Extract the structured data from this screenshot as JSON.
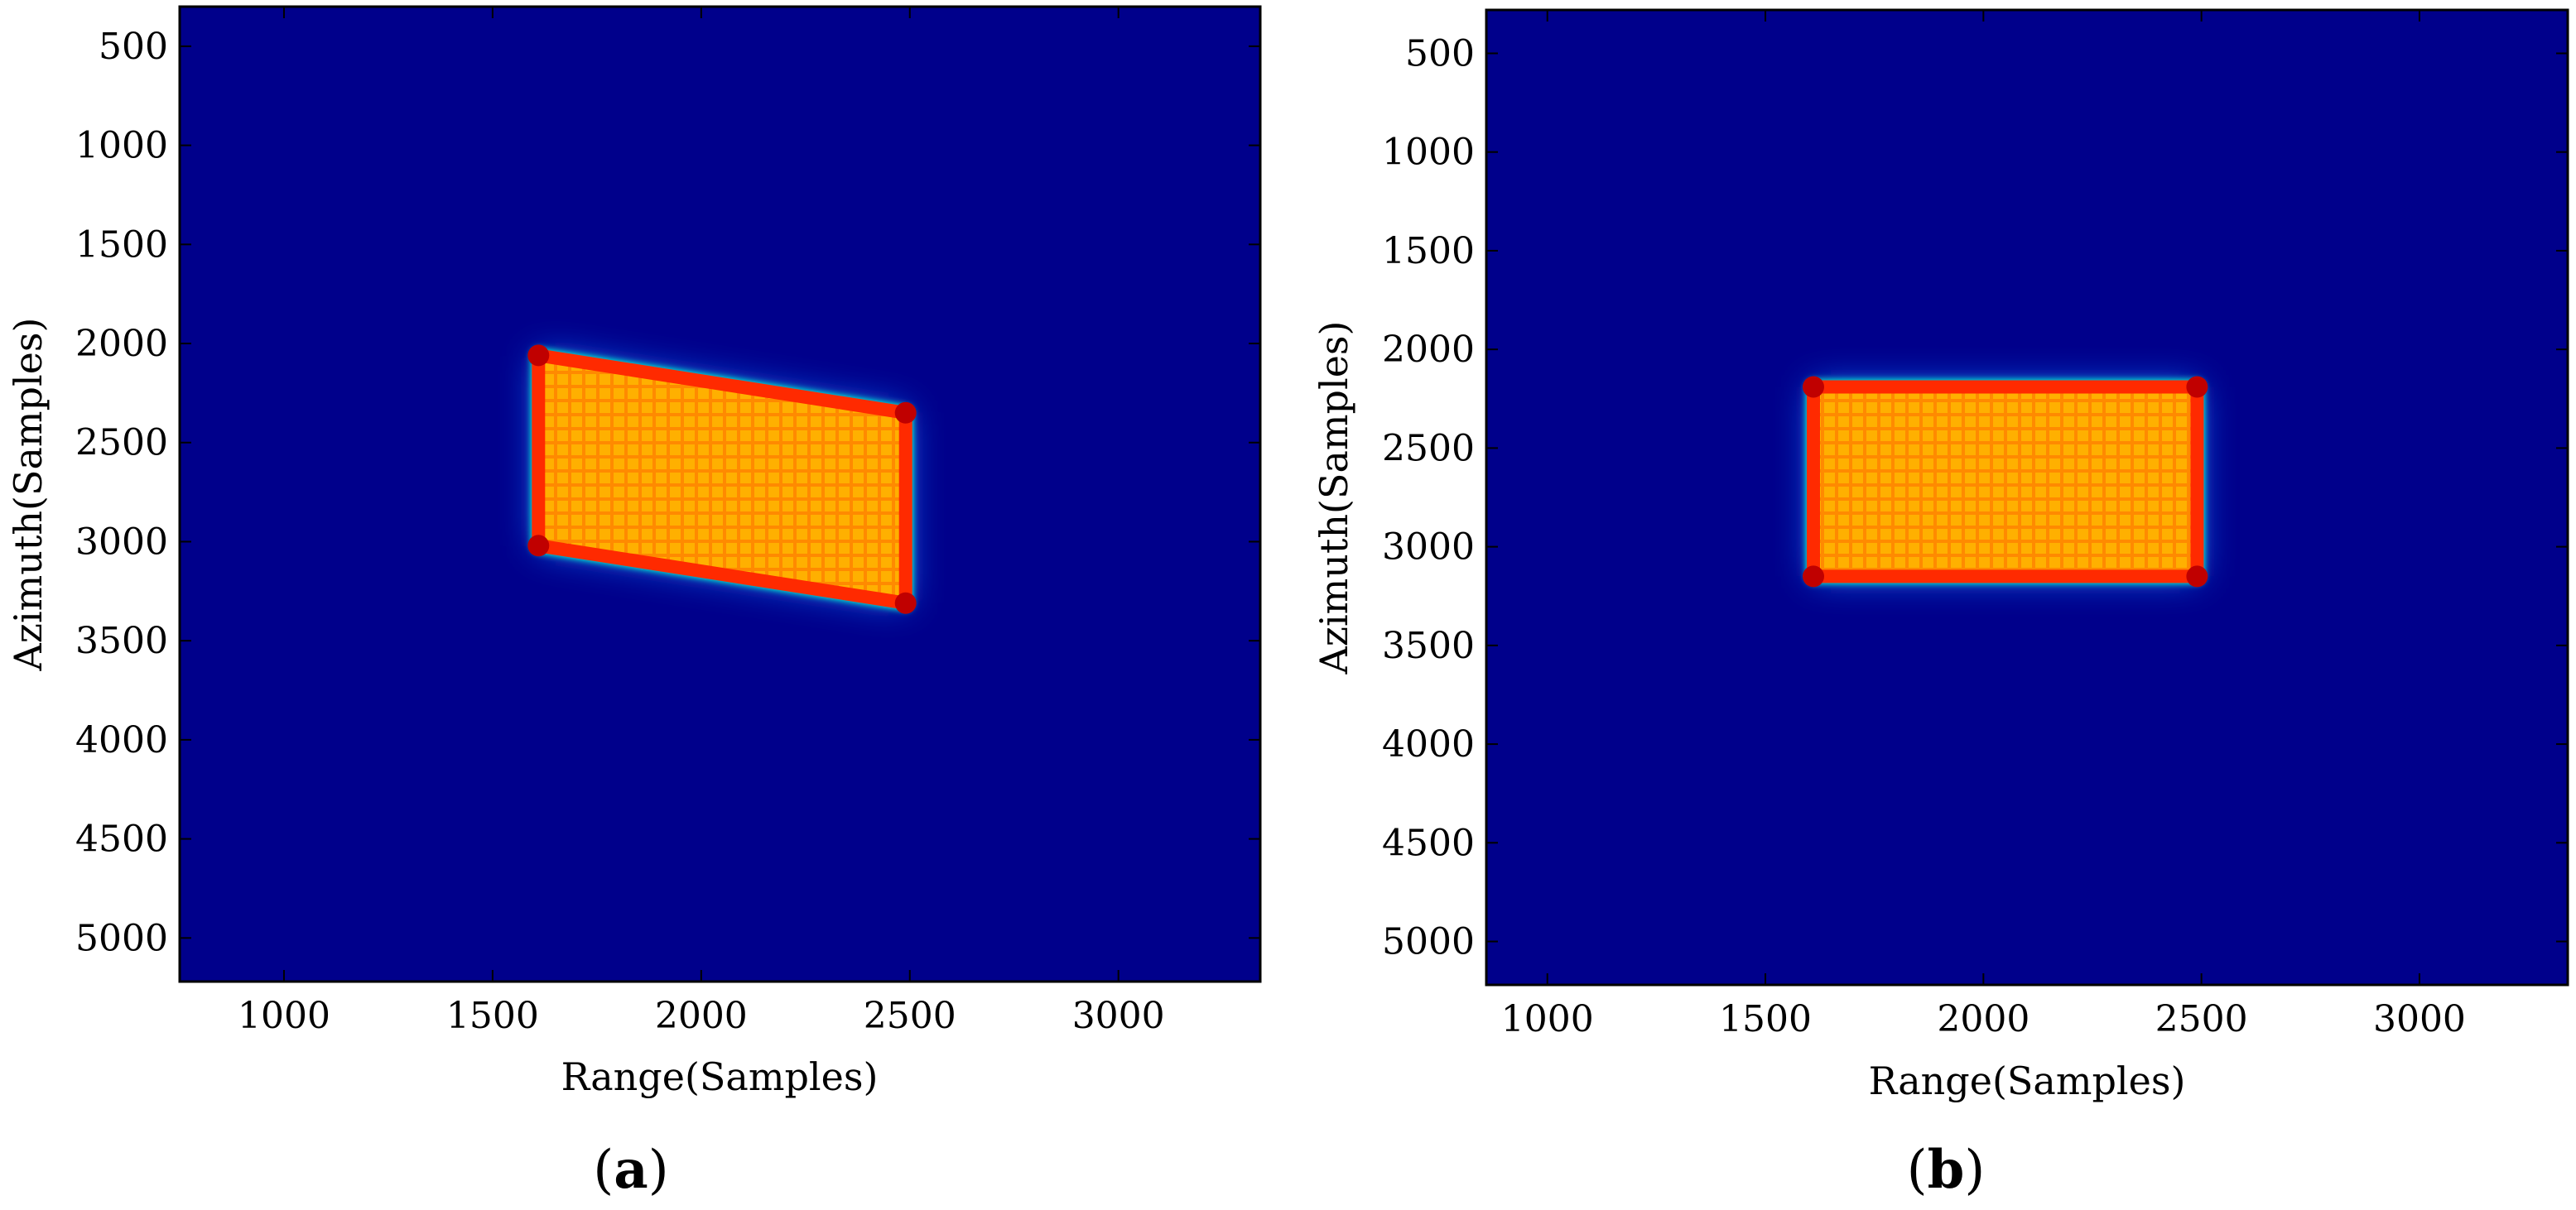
{
  "chart_data": [
    {
      "type": "heatmap",
      "panel_label": "a",
      "xlabel": "Range(Samples)",
      "ylabel": "Azimuth(Samples)",
      "xlim": [
        750,
        3340
      ],
      "ylim": [
        5220,
        300
      ],
      "xticks": [
        1000,
        1500,
        2000,
        2500,
        3000
      ],
      "yticks": [
        500,
        1000,
        1500,
        2000,
        2500,
        3000,
        3500,
        4000,
        4500,
        5000
      ],
      "colormap": "jet",
      "background_color": "#00008b",
      "target": {
        "shape": "parallelogram",
        "corners": [
          [
            1610,
            2060
          ],
          [
            2490,
            2350
          ],
          [
            2490,
            3310
          ],
          [
            1610,
            3020
          ]
        ]
      }
    },
    {
      "type": "heatmap",
      "panel_label": "b",
      "xlabel": "Range(Samples)",
      "ylabel": "Azimuth(Samples)",
      "xlim": [
        860,
        3340
      ],
      "ylim": [
        5220,
        280
      ],
      "xticks": [
        1000,
        1500,
        2000,
        2500,
        3000
      ],
      "yticks": [
        500,
        1000,
        1500,
        2000,
        2500,
        3000,
        3500,
        4000,
        4500,
        5000
      ],
      "colormap": "jet",
      "background_color": "#00008b",
      "target": {
        "shape": "rectangle",
        "corners": [
          [
            1610,
            2190
          ],
          [
            2490,
            2190
          ],
          [
            2490,
            3150
          ],
          [
            1610,
            3150
          ]
        ]
      }
    }
  ]
}
